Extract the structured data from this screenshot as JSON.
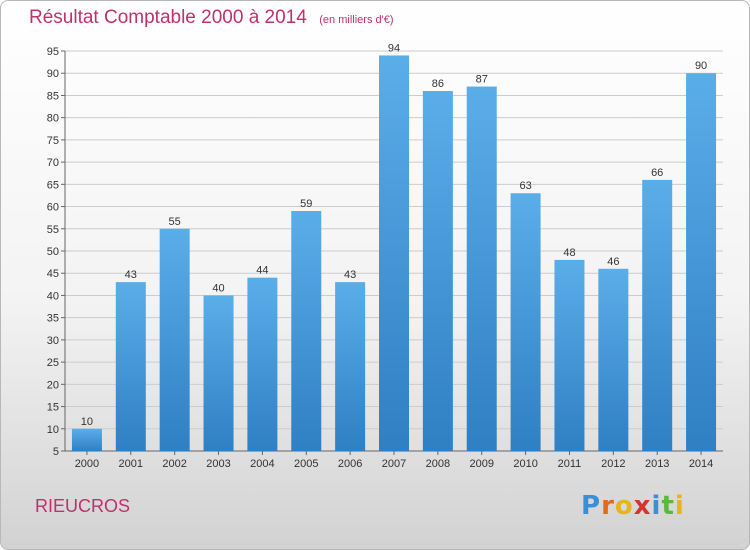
{
  "header": {
    "title": "Résultat Comptable 2000 à 2014",
    "unit": "(en milliers d'€)"
  },
  "footer": {
    "commune": "RIEUCROS",
    "logo_letters": [
      "P",
      "r",
      "o",
      "x",
      "i",
      "t",
      "i"
    ]
  },
  "colors": {
    "title": "#c0306e",
    "bar_top": "#5aaee8",
    "bar_bottom": "#2f7fc4",
    "grid": "#cccccc",
    "logo": [
      "#3b8fd6",
      "#e06b1b",
      "#e6b51d",
      "#d6342f",
      "#3b8fd6",
      "#5cb83a",
      "#e6b51d"
    ]
  },
  "chart_data": {
    "type": "bar",
    "categories": [
      "2000",
      "2001",
      "2002",
      "2003",
      "2004",
      "2005",
      "2006",
      "2007",
      "2008",
      "2009",
      "2010",
      "2011",
      "2012",
      "2013",
      "2014"
    ],
    "values": [
      10,
      43,
      55,
      40,
      44,
      59,
      43,
      94,
      86,
      87,
      63,
      48,
      46,
      66,
      90
    ],
    "ylim": [
      5,
      95
    ],
    "yticks": [
      5,
      10,
      15,
      20,
      25,
      30,
      35,
      40,
      45,
      50,
      55,
      60,
      65,
      70,
      75,
      80,
      85,
      90,
      95
    ],
    "grid": true
  }
}
